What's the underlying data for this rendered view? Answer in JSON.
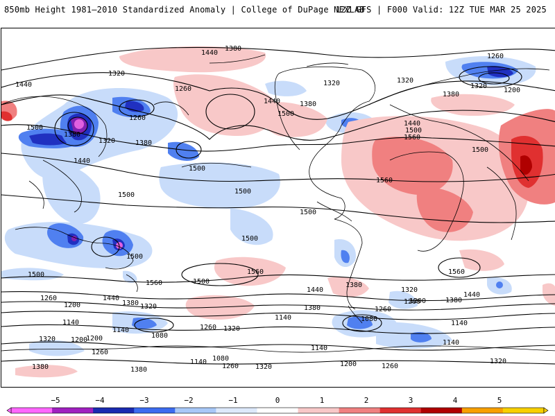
{
  "header": {
    "left_title": "850mb Height 1981–2010 Standardized Anomaly | College of DuPage NEXLAB",
    "right_title": "12Z GFS | F000 Valid: 12Z TUE MAR 25 2025"
  },
  "map": {
    "projection": "global cylindrical",
    "contour_labels": [
      "1440",
      "1380",
      "1320",
      "1440",
      "1500",
      "1380",
      "1320",
      "1260",
      "1380",
      "1440",
      "1500",
      "1260",
      "1380",
      "1320",
      "1440",
      "1500",
      "1500",
      "1500",
      "1560",
      "1440",
      "1500",
      "1500",
      "1500",
      "1560",
      "1500",
      "1560",
      "1560",
      "1500",
      "1560",
      "1500",
      "1500",
      "1440",
      "1380",
      "1320",
      "1260",
      "1200",
      "1440",
      "1380",
      "1320",
      "1260",
      "1200",
      "1380",
      "1260",
      "1320",
      "1200",
      "1440",
      "1380",
      "1140",
      "1140",
      "1140",
      "1080",
      "1080",
      "1140",
      "1140",
      "1200",
      "1260",
      "1320",
      "1200",
      "1320",
      "1380",
      "1140",
      "1080",
      "1260",
      "1320",
      "1380",
      "1200",
      "1260",
      "1320",
      "1380",
      "1260",
      "1200",
      "1140",
      "1320"
    ],
    "anomaly_palette": {
      "neg5": "#e060e0",
      "neg4": "#8020b0",
      "neg3": "#2030c0",
      "neg2": "#5080f0",
      "neg1": "#c8dcfa",
      "pos1": "#f8c8c8",
      "pos2": "#f08080",
      "pos3": "#e03030",
      "pos4": "#b00000",
      "pos5": "#f0a000"
    }
  },
  "colorbar": {
    "ticks": [
      "−5",
      "−4",
      "−3",
      "−2",
      "−1",
      "0",
      "1",
      "2",
      "3",
      "4",
      "5"
    ],
    "colors": [
      "#ff66ff",
      "#a020c0",
      "#1a2ab0",
      "#3c6cf0",
      "#a8c8f8",
      "#dde9fb",
      "#ffffff",
      "#f8c8c8",
      "#f08080",
      "#e03030",
      "#b00000",
      "#f8a000",
      "#f8d000"
    ]
  }
}
